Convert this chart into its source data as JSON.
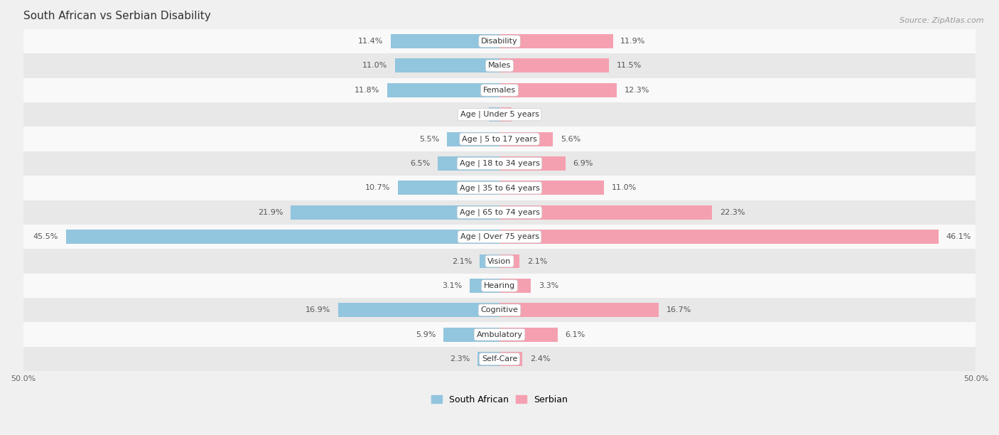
{
  "title": "South African vs Serbian Disability",
  "source": "Source: ZipAtlas.com",
  "categories": [
    "Disability",
    "Males",
    "Females",
    "Age | Under 5 years",
    "Age | 5 to 17 years",
    "Age | 18 to 34 years",
    "Age | 35 to 64 years",
    "Age | 65 to 74 years",
    "Age | Over 75 years",
    "Vision",
    "Hearing",
    "Cognitive",
    "Ambulatory",
    "Self-Care"
  ],
  "south_african": [
    11.4,
    11.0,
    11.8,
    1.1,
    5.5,
    6.5,
    10.7,
    21.9,
    45.5,
    2.1,
    3.1,
    16.9,
    5.9,
    2.3
  ],
  "serbian": [
    11.9,
    11.5,
    12.3,
    1.3,
    5.6,
    6.9,
    11.0,
    22.3,
    46.1,
    2.1,
    3.3,
    16.7,
    6.1,
    2.4
  ],
  "left_color": "#92C5DE",
  "right_color": "#F4A0B0",
  "bar_height": 0.58,
  "x_max": 50.0,
  "background_color": "#f0f0f0",
  "row_color_light": "#f9f9f9",
  "row_color_dark": "#e8e8e8",
  "title_fontsize": 11,
  "label_fontsize": 8,
  "value_fontsize": 8,
  "legend_fontsize": 9,
  "source_fontsize": 8
}
